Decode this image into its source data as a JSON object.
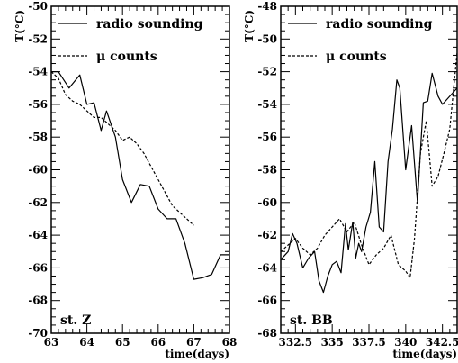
{
  "chart_data": [
    {
      "type": "line",
      "panel_label": "st. Z",
      "ylabel": "T(°C)",
      "xlabel": "time(days)",
      "xlim": [
        63,
        68
      ],
      "ylim": [
        -70,
        -50
      ],
      "xticks": [
        63,
        64,
        65,
        66,
        67,
        68
      ],
      "xtick_labels": [
        "63",
        "64",
        "65",
        "66",
        "67",
        "68"
      ],
      "yticks": [
        -70,
        -68,
        -66,
        -64,
        -62,
        -60,
        -58,
        -56,
        -54,
        -52,
        -50
      ],
      "ytick_labels": [
        "-70",
        "-68",
        "-66",
        "-64",
        "-62",
        "-60",
        "-58",
        "-56",
        "-54",
        "-52",
        "-50"
      ],
      "legend_position": "top",
      "series": [
        {
          "name": "radio sounding",
          "style": "solid",
          "x": [
            63.0,
            63.2,
            63.5,
            63.8,
            64.0,
            64.2,
            64.4,
            64.55,
            64.8,
            65.0,
            65.25,
            65.5,
            65.75,
            66.0,
            66.25,
            66.5,
            66.75,
            67.0,
            67.25,
            67.5,
            67.75,
            68.0
          ],
          "y": [
            -54.0,
            -54.0,
            -55.0,
            -54.2,
            -56.0,
            -55.9,
            -57.6,
            -56.4,
            -58.0,
            -60.6,
            -62.0,
            -60.9,
            -61.0,
            -62.4,
            -63.0,
            -63.0,
            -64.5,
            -66.7,
            -66.6,
            -66.4,
            -65.2,
            -65.2
          ]
        },
        {
          "name": "μ counts",
          "style": "dashed",
          "x": [
            63.0,
            63.2,
            63.4,
            63.6,
            63.8,
            64.0,
            64.2,
            64.4,
            64.6,
            64.8,
            65.0,
            65.2,
            65.4,
            65.6,
            65.8,
            66.0,
            66.2,
            66.4,
            66.6,
            66.8,
            67.0
          ],
          "y": [
            -54.0,
            -54.4,
            -55.4,
            -55.8,
            -56.0,
            -56.4,
            -56.8,
            -56.8,
            -57.2,
            -57.6,
            -58.2,
            -58.0,
            -58.4,
            -59.0,
            -59.8,
            -60.6,
            -61.4,
            -62.2,
            -62.6,
            -63.0,
            -63.4
          ]
        }
      ]
    },
    {
      "type": "line",
      "panel_label": "st. BB",
      "ylabel": "T(°C)",
      "xlabel": "time(days)",
      "xlim": [
        331.5,
        343.5
      ],
      "ylim": [
        -68,
        -48
      ],
      "xticks": [
        332.5,
        335,
        337.5,
        340,
        342.5
      ],
      "xtick_labels": [
        "332.5",
        "335",
        "337.5",
        "340",
        "342.5"
      ],
      "yticks": [
        -68,
        -66,
        -64,
        -62,
        -60,
        -58,
        -56,
        -54,
        -52,
        -50,
        -48
      ],
      "ytick_labels": [
        "-68",
        "-66",
        "-64",
        "-62",
        "-60",
        "-58",
        "-56",
        "-54",
        "-52",
        "-50",
        "-48"
      ],
      "legend_position": "top",
      "series": [
        {
          "name": "radio sounding",
          "style": "solid",
          "x": [
            331.5,
            332.0,
            332.3,
            332.6,
            333.0,
            333.4,
            333.8,
            334.1,
            334.4,
            334.7,
            335.0,
            335.3,
            335.6,
            335.9,
            336.1,
            336.4,
            336.6,
            336.8,
            337.0,
            337.3,
            337.6,
            337.9,
            338.2,
            338.5,
            338.8,
            339.1,
            339.4,
            339.6,
            340.0,
            340.4,
            340.8,
            341.2,
            341.5,
            341.8,
            342.2,
            342.5,
            342.9,
            343.3,
            343.5
          ],
          "y": [
            -63.5,
            -63.0,
            -61.9,
            -62.5,
            -64.0,
            -63.4,
            -63.0,
            -64.8,
            -65.5,
            -64.5,
            -63.8,
            -63.6,
            -64.3,
            -61.3,
            -62.9,
            -61.2,
            -63.4,
            -62.5,
            -63.0,
            -61.5,
            -60.6,
            -57.5,
            -61.5,
            -61.8,
            -57.5,
            -55.5,
            -52.5,
            -53.0,
            -58.0,
            -55.3,
            -60.0,
            -53.9,
            -53.8,
            -52.1,
            -53.5,
            -54.0,
            -53.6,
            -53.2,
            -53.0
          ]
        },
        {
          "name": "μ counts",
          "style": "dashed",
          "x": [
            331.5,
            332.0,
            332.5,
            333.0,
            333.5,
            334.0,
            334.5,
            335.0,
            335.5,
            336.0,
            336.5,
            337.0,
            337.5,
            338.0,
            338.5,
            339.0,
            339.5,
            340.0,
            340.3,
            340.6,
            341.0,
            341.4,
            341.8,
            342.2,
            342.6,
            343.0,
            343.5
          ],
          "y": [
            -63.0,
            -62.6,
            -62.2,
            -62.8,
            -63.2,
            -62.8,
            -62.0,
            -61.5,
            -61.0,
            -61.8,
            -61.2,
            -62.6,
            -63.8,
            -63.2,
            -62.8,
            -62.0,
            -63.8,
            -64.2,
            -64.6,
            -62.2,
            -57.0,
            -55.0,
            -59.0,
            -58.4,
            -57.0,
            -55.5,
            -50.8
          ]
        }
      ]
    }
  ]
}
